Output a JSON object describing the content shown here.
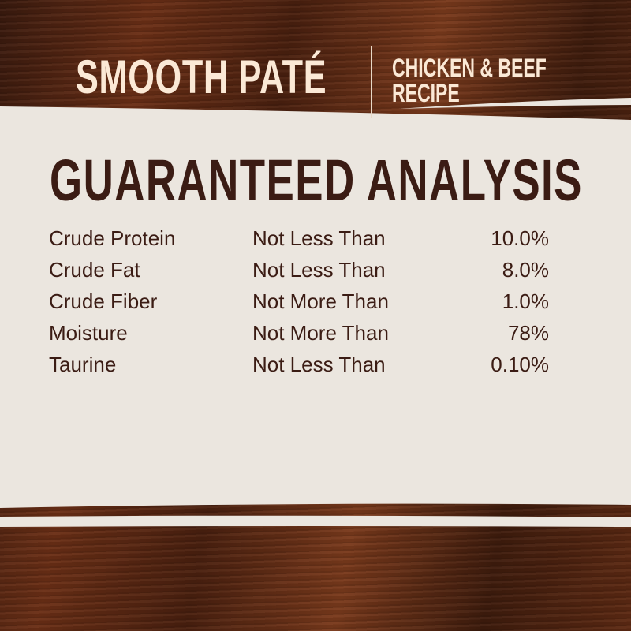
{
  "header": {
    "product": "SMOOTH PATÉ",
    "recipe_line1": "CHICKEN & BEEF",
    "recipe_line2": "RECIPE"
  },
  "heading": "GUARANTEED ANALYSIS",
  "rows": [
    {
      "nutrient": "Crude Protein",
      "qualifier": "Not Less Than",
      "value": "10.0%"
    },
    {
      "nutrient": "Crude Fat",
      "qualifier": "Not Less Than",
      "value": "8.0%"
    },
    {
      "nutrient": "Crude Fiber",
      "qualifier": "Not More Than",
      "value": "1.0%"
    },
    {
      "nutrient": "Moisture",
      "qualifier": "Not More Than",
      "value": "78%"
    },
    {
      "nutrient": "Taurine",
      "qualifier": "Not Less Than",
      "value": "0.10%"
    }
  ],
  "colors": {
    "wood": "#5e2a13",
    "paper": "#ebe6df",
    "text_dark": "#3b1c14",
    "text_light": "#fbe9d6"
  }
}
